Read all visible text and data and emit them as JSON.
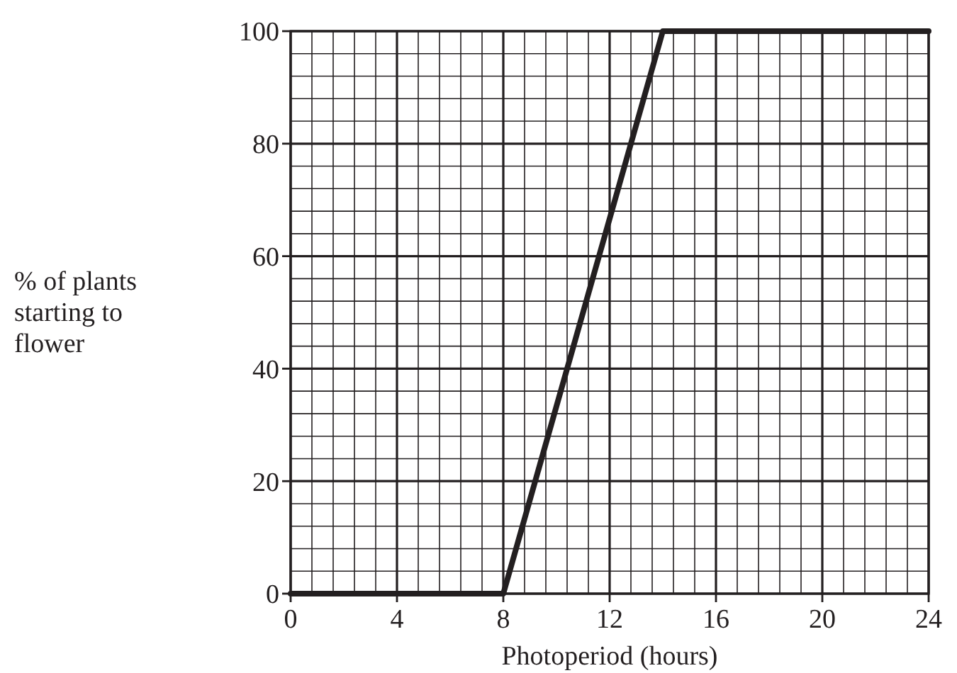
{
  "chart_data": {
    "type": "line",
    "xlabel": "Photoperiod (hours)",
    "ylabel": "% of plants\nstarting to\nflower",
    "x": [
      0,
      8,
      14,
      24
    ],
    "series": [
      {
        "color": "#231f20",
        "values": [
          0,
          0,
          100,
          100
        ]
      }
    ],
    "xlim": [
      0,
      24
    ],
    "ylim": [
      0,
      100
    ],
    "xticks": [
      0,
      {
        "value": 0.8,
        "label": null
      },
      {
        "value": 1.6,
        "label": null
      },
      {
        "value": 2.4,
        "label": null
      },
      {
        "value": 3.2,
        "label": null
      },
      4,
      {
        "value": 4.8,
        "label": null
      },
      {
        "value": 5.6,
        "label": null
      },
      {
        "value": 6.4,
        "label": null
      },
      {
        "value": 7.2,
        "label": null
      },
      8,
      {
        "value": 8.8,
        "label": null
      },
      {
        "value": 9.6,
        "label": null
      },
      {
        "value": 10.4,
        "label": null
      },
      {
        "value": 11.2,
        "label": null
      },
      12,
      {
        "value": 12.8,
        "label": null
      },
      {
        "value": 13.6,
        "label": null
      },
      {
        "value": 14.4,
        "label": null
      },
      {
        "value": 15.2,
        "label": null
      },
      16,
      {
        "value": 16.8,
        "label": null
      },
      {
        "value": 17.6,
        "label": null
      },
      {
        "value": 18.4,
        "label": null
      },
      {
        "value": 19.2,
        "label": null
      },
      20,
      {
        "value": 20.8,
        "label": null
      },
      {
        "value": 21.6,
        "label": null
      },
      {
        "value": 22.4,
        "label": null
      },
      {
        "value": 23.2,
        "label": null
      },
      24
    ],
    "yticks": [
      0,
      {
        "value": 4,
        "label": null
      },
      {
        "value": 8,
        "label": null
      },
      {
        "value": 12,
        "label": null
      },
      {
        "value": 16,
        "label": null
      },
      20,
      {
        "value": 24,
        "label": null
      },
      {
        "value": 28,
        "label": null
      },
      {
        "value": 32,
        "label": null
      },
      {
        "value": 36,
        "label": null
      },
      40,
      {
        "value": 44,
        "label": null
      },
      {
        "value": 48,
        "label": null
      },
      {
        "value": 52,
        "label": null
      },
      {
        "value": 56,
        "label": null
      },
      60,
      {
        "value": 64,
        "label": null
      },
      {
        "value": 68,
        "label": null
      },
      {
        "value": 72,
        "label": null
      },
      {
        "value": 76,
        "label": null
      },
      80,
      {
        "value": 84,
        "label": null
      },
      {
        "value": 88,
        "label": null
      },
      {
        "value": 92,
        "label": null
      },
      {
        "value": 96,
        "label": null
      },
      100
    ],
    "grid": true,
    "line_style": "solid",
    "marker": "none"
  }
}
